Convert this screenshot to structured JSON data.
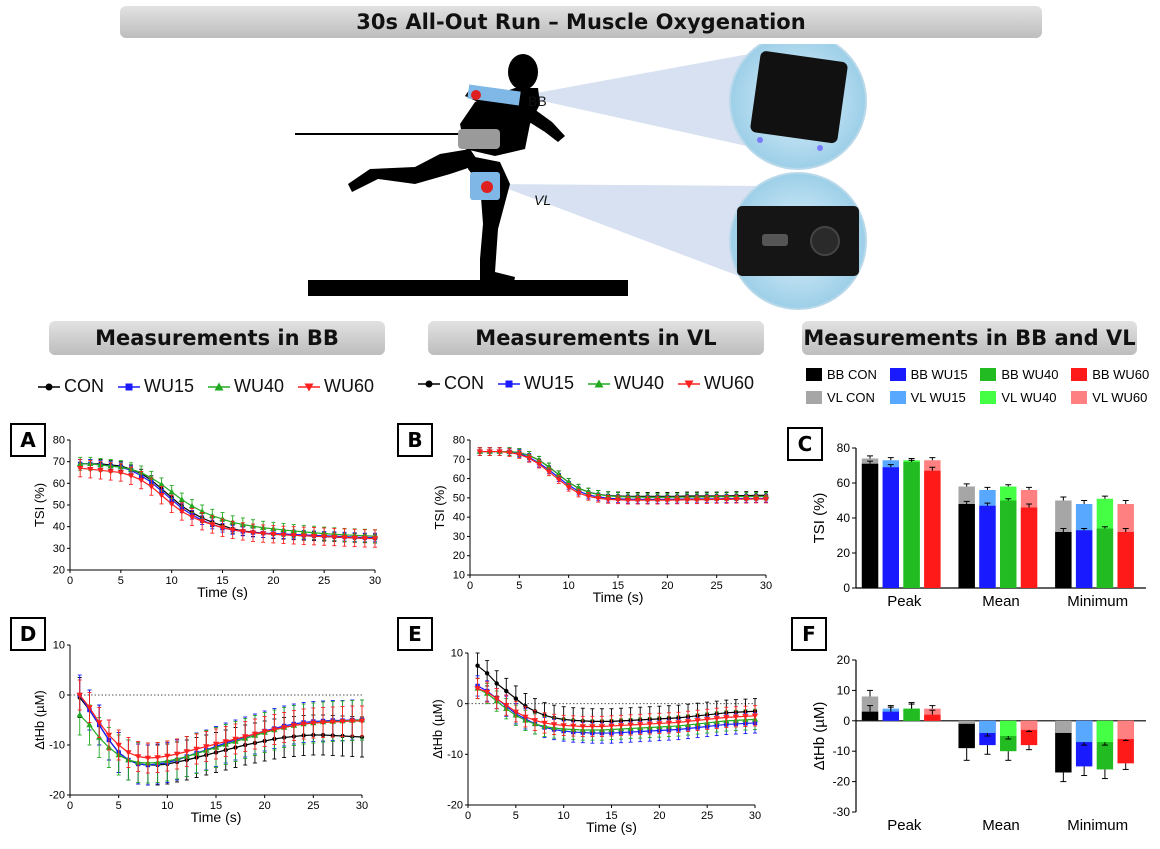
{
  "header": {
    "title": "30s All-Out Run – Muscle Oxygenation"
  },
  "illustration": {
    "bb_label": "BB",
    "vl_label": "VL"
  },
  "sections": {
    "bb": "Measurements in BB",
    "vl": "Measurements in VL",
    "both": "Measurements in BB and VL"
  },
  "panel_labels": {
    "A": "A",
    "B": "B",
    "C": "C",
    "D": "D",
    "E": "E",
    "F": "F"
  },
  "line_legend": [
    {
      "name": "CON",
      "color": "#000000",
      "marker": "circle"
    },
    {
      "name": "WU15",
      "color": "#1a1aff",
      "marker": "square"
    },
    {
      "name": "WU40",
      "color": "#22aa22",
      "marker": "triangle-up"
    },
    {
      "name": "WU60",
      "color": "#ff2020",
      "marker": "triangle-down"
    }
  ],
  "bar_legend": [
    {
      "name": "BB CON",
      "color": "#000000"
    },
    {
      "name": "BB WU15",
      "color": "#1a1aff"
    },
    {
      "name": "BB WU40",
      "color": "#22bb22"
    },
    {
      "name": "BB WU60",
      "color": "#ff1a1a"
    },
    {
      "name": "VL CON",
      "color": "#a6a6a6"
    },
    {
      "name": "VL WU15",
      "color": "#58a8ff"
    },
    {
      "name": "VL WU40",
      "color": "#44ff44"
    },
    {
      "name": "VL WU60",
      "color": "#ff8080"
    }
  ],
  "chart_data": [
    {
      "id": "A",
      "type": "line",
      "xlabel": "Time (s)",
      "ylabel": "TSI (%)",
      "xlim": [
        0,
        30
      ],
      "ylim": [
        20,
        80
      ],
      "xticks": [
        0,
        5,
        10,
        15,
        20,
        25,
        30
      ],
      "yticks": [
        20,
        30,
        40,
        50,
        60,
        70,
        80
      ],
      "x": [
        1,
        2,
        3,
        4,
        5,
        6,
        7,
        8,
        9,
        10,
        11,
        12,
        13,
        14,
        15,
        16,
        17,
        18,
        19,
        20,
        21,
        22,
        23,
        24,
        25,
        26,
        27,
        28,
        29,
        30
      ],
      "series": [
        {
          "name": "CON",
          "values": [
            69,
            69,
            69,
            68.5,
            68,
            66.5,
            64.5,
            61.5,
            57.5,
            53.5,
            49.5,
            46.5,
            44,
            42,
            40.5,
            39,
            38,
            37.5,
            37,
            36.5,
            36.3,
            36,
            35.8,
            35.6,
            35.4,
            35.2,
            35,
            34.8,
            34.6,
            34.5
          ],
          "err": 2
        },
        {
          "name": "WU15",
          "values": [
            69,
            69,
            68.5,
            68,
            67.5,
            66,
            63.5,
            60.5,
            56.5,
            52.5,
            48.5,
            45.5,
            43,
            41,
            39.5,
            38.5,
            37.8,
            37.3,
            37,
            36.8,
            36.6,
            36.4,
            36.2,
            36,
            35.8,
            35.6,
            35.4,
            35.2,
            35,
            35
          ],
          "err": 2
        },
        {
          "name": "WU40",
          "values": [
            69,
            69,
            68.5,
            68,
            67.5,
            66.5,
            65,
            62.5,
            59.5,
            56,
            52.5,
            49.5,
            47,
            45,
            43.5,
            42,
            41,
            40.2,
            39.5,
            39,
            38.5,
            38,
            37.6,
            37.2,
            36.8,
            36.5,
            36.2,
            36,
            35.8,
            35.6
          ],
          "err": 3
        },
        {
          "name": "WU60",
          "values": [
            67,
            66.5,
            66,
            65.5,
            65,
            63.5,
            61.5,
            58.5,
            54.5,
            50.5,
            47,
            44.5,
            42.5,
            41,
            39.5,
            38.5,
            37.8,
            37.2,
            36.8,
            36.5,
            36.2,
            36,
            35.8,
            35.6,
            35.4,
            35.2,
            35,
            34.8,
            34.6,
            34.5
          ],
          "err": 4
        }
      ]
    },
    {
      "id": "B",
      "type": "line",
      "xlabel": "Time (s)",
      "ylabel": "TSI (%)",
      "xlim": [
        0,
        30
      ],
      "ylim": [
        10,
        80
      ],
      "xticks": [
        0,
        5,
        10,
        15,
        20,
        25,
        30
      ],
      "yticks": [
        10,
        20,
        30,
        40,
        50,
        60,
        70,
        80
      ],
      "x": [
        1,
        2,
        3,
        4,
        5,
        6,
        7,
        8,
        9,
        10,
        11,
        12,
        13,
        14,
        15,
        16,
        17,
        18,
        19,
        20,
        21,
        22,
        23,
        24,
        25,
        26,
        27,
        28,
        29,
        30
      ],
      "series": [
        {
          "name": "CON",
          "values": [
            74,
            74,
            74,
            74,
            73.5,
            72,
            69.5,
            66,
            62,
            58,
            55,
            53,
            51.8,
            51.2,
            51,
            50.8,
            50.8,
            50.8,
            50.8,
            50.8,
            50.8,
            51,
            51,
            51,
            51,
            51,
            51.2,
            51.2,
            51.3,
            51.3
          ],
          "err": 2
        },
        {
          "name": "WU15",
          "values": [
            74,
            74,
            74,
            73.8,
            73,
            71,
            68,
            64.5,
            60.5,
            56.5,
            53.5,
            51.5,
            50.5,
            49.8,
            49.5,
            49.3,
            49.2,
            49.2,
            49.2,
            49.2,
            49.3,
            49.4,
            49.4,
            49.5,
            49.5,
            49.6,
            49.6,
            49.7,
            49.7,
            49.8
          ],
          "err": 2
        },
        {
          "name": "WU40",
          "values": [
            74,
            74,
            74,
            74,
            73.5,
            72,
            69.5,
            66,
            62,
            58,
            55,
            53,
            51.8,
            51,
            50.7,
            50.5,
            50.4,
            50.3,
            50.3,
            50.3,
            50.4,
            50.4,
            50.5,
            50.5,
            50.6,
            50.6,
            50.7,
            50.7,
            50.8,
            50.8
          ],
          "err": 2
        },
        {
          "name": "WU60",
          "values": [
            74,
            74,
            74,
            73.5,
            72.5,
            70.5,
            67.5,
            63.5,
            59.5,
            55.5,
            52.5,
            50.8,
            49.8,
            49.2,
            49,
            48.8,
            48.8,
            48.8,
            48.8,
            48.8,
            48.9,
            49,
            49,
            49.1,
            49.2,
            49.2,
            49.3,
            49.3,
            49.4,
            49.4
          ],
          "err": 2
        }
      ]
    },
    {
      "id": "C",
      "type": "bar",
      "ylabel": "TSI (%)",
      "ylim": [
        0,
        80
      ],
      "yticks": [
        0,
        20,
        40,
        60,
        80
      ],
      "categories": [
        "Peak",
        "Mean",
        "Minimum"
      ],
      "bb": [
        {
          "name": "BB CON",
          "values": [
            71,
            48,
            32
          ],
          "err": [
            1.5,
            1.5,
            2
          ]
        },
        {
          "name": "BB WU15",
          "values": [
            69,
            47,
            33
          ],
          "err": [
            1.5,
            1.5,
            1
          ]
        },
        {
          "name": "BB WU40",
          "values": [
            72,
            50,
            34
          ],
          "err": [
            1,
            1,
            1
          ]
        },
        {
          "name": "BB WU60",
          "values": [
            67,
            46,
            32
          ],
          "err": [
            2,
            2,
            2
          ]
        }
      ],
      "vl": [
        {
          "name": "VL CON",
          "values": [
            74,
            58,
            50
          ],
          "err": [
            1.5,
            1.5,
            2
          ]
        },
        {
          "name": "VL WU15",
          "values": [
            73,
            56,
            48
          ],
          "err": [
            1.5,
            1.5,
            2
          ]
        },
        {
          "name": "VL WU40",
          "values": [
            73,
            58,
            51
          ],
          "err": [
            1,
            1,
            1.5
          ]
        },
        {
          "name": "VL WU60",
          "values": [
            73,
            56,
            48
          ],
          "err": [
            1.5,
            1.5,
            2
          ]
        }
      ]
    },
    {
      "id": "D",
      "type": "line",
      "xlabel": "Time (s)",
      "ylabel": "ΔtHb (µM)",
      "xlim": [
        0,
        30
      ],
      "ylim": [
        -20,
        10
      ],
      "xticks": [
        0,
        5,
        10,
        15,
        20,
        25,
        30
      ],
      "yticks": [
        -20,
        -10,
        0,
        10
      ],
      "reference_line": 0,
      "x": [
        1,
        2,
        3,
        4,
        5,
        6,
        7,
        8,
        9,
        10,
        11,
        12,
        13,
        14,
        15,
        16,
        17,
        18,
        19,
        20,
        21,
        22,
        23,
        24,
        25,
        26,
        27,
        28,
        29,
        30
      ],
      "series": [
        {
          "name": "CON",
          "values": [
            -0.5,
            -3,
            -6,
            -9,
            -11.5,
            -13,
            -13.8,
            -14,
            -14,
            -13.8,
            -13.4,
            -13,
            -12.5,
            -12,
            -11.5,
            -11,
            -10.5,
            -10,
            -9.6,
            -9.2,
            -8.8,
            -8.5,
            -8.3,
            -8.1,
            -8,
            -8,
            -8.1,
            -8.2,
            -8.3,
            -8.4
          ],
          "err": 4
        },
        {
          "name": "WU15",
          "values": [
            0,
            -3,
            -6,
            -9,
            -11.5,
            -13,
            -13.8,
            -14,
            -13.8,
            -13.5,
            -13,
            -12.3,
            -11.6,
            -11,
            -10.3,
            -9.6,
            -9,
            -8.4,
            -7.8,
            -7.2,
            -6.7,
            -6.2,
            -5.8,
            -5.5,
            -5.3,
            -5.2,
            -5.1,
            -5.1,
            -5,
            -5
          ],
          "err": 4
        },
        {
          "name": "WU40",
          "values": [
            -4,
            -6,
            -8.5,
            -10.5,
            -12,
            -13,
            -13.5,
            -13.6,
            -13.5,
            -13.2,
            -12.8,
            -12.3,
            -11.7,
            -11.1,
            -10.5,
            -9.9,
            -9.3,
            -8.7,
            -8.1,
            -7.5,
            -7,
            -6.5,
            -6.1,
            -5.8,
            -5.6,
            -5.4,
            -5.3,
            -5.2,
            -5.1,
            -5
          ],
          "err": 4
        },
        {
          "name": "WU60",
          "values": [
            0,
            -2.5,
            -5.5,
            -8,
            -10,
            -11.5,
            -12.3,
            -12.6,
            -12.5,
            -12.2,
            -11.8,
            -11.3,
            -10.8,
            -10.3,
            -9.8,
            -9.3,
            -8.8,
            -8.3,
            -7.8,
            -7.3,
            -6.9,
            -6.5,
            -6.1,
            -5.8,
            -5.6,
            -5.5,
            -5.4,
            -5.3,
            -5.2,
            -5.2
          ],
          "err": 3
        }
      ]
    },
    {
      "id": "E",
      "type": "line",
      "xlabel": "Time (s)",
      "ylabel": "ΔtHb (µM)",
      "xlim": [
        0,
        30
      ],
      "ylim": [
        -20,
        10
      ],
      "xticks": [
        0,
        5,
        10,
        15,
        20,
        25,
        30
      ],
      "yticks": [
        -20,
        -10,
        0,
        10
      ],
      "reference_line": 0,
      "x": [
        1,
        2,
        3,
        4,
        5,
        6,
        7,
        8,
        9,
        10,
        11,
        12,
        13,
        14,
        15,
        16,
        17,
        18,
        19,
        20,
        21,
        22,
        23,
        24,
        25,
        26,
        27,
        28,
        29,
        30
      ],
      "series": [
        {
          "name": "CON",
          "values": [
            7.5,
            6,
            4,
            2.5,
            1,
            -0.5,
            -1.5,
            -2.3,
            -2.8,
            -3.1,
            -3.3,
            -3.4,
            -3.5,
            -3.5,
            -3.5,
            -3.4,
            -3.3,
            -3.2,
            -3.1,
            -3,
            -2.9,
            -2.8,
            -2.6,
            -2.4,
            -2.2,
            -2,
            -1.8,
            -1.7,
            -1.6,
            -1.5
          ],
          "err": 2.5
        },
        {
          "name": "WU15",
          "values": [
            3.5,
            2.5,
            1,
            -0.5,
            -2,
            -3,
            -4,
            -4.7,
            -5.1,
            -5.4,
            -5.6,
            -5.7,
            -5.8,
            -5.8,
            -5.8,
            -5.7,
            -5.6,
            -5.5,
            -5.4,
            -5.3,
            -5.2,
            -5.1,
            -4.9,
            -4.7,
            -4.5,
            -4.3,
            -4.1,
            -4,
            -3.9,
            -3.8
          ],
          "err": 2
        },
        {
          "name": "WU40",
          "values": [
            3,
            2,
            0.5,
            -1,
            -2.3,
            -3.3,
            -4,
            -4.5,
            -4.8,
            -5,
            -5.1,
            -5.2,
            -5.2,
            -5.2,
            -5.1,
            -5,
            -4.9,
            -4.8,
            -4.7,
            -4.6,
            -4.5,
            -4.4,
            -4.2,
            -4,
            -3.8,
            -3.6,
            -3.4,
            -3.3,
            -3.2,
            -3.1
          ],
          "err": 2
        },
        {
          "name": "WU60",
          "values": [
            3,
            2.3,
            1,
            -0.3,
            -1.6,
            -2.6,
            -3.3,
            -3.8,
            -4.1,
            -4.3,
            -4.4,
            -4.5,
            -4.5,
            -4.5,
            -4.4,
            -4.3,
            -4.2,
            -4.1,
            -4,
            -3.9,
            -3.8,
            -3.7,
            -3.5,
            -3.3,
            -3.1,
            -2.9,
            -2.7,
            -2.6,
            -2.5,
            -2.4
          ],
          "err": 2
        }
      ]
    },
    {
      "id": "F",
      "type": "bar",
      "ylabel": "ΔtHb (µM)",
      "ylim": [
        -30,
        20
      ],
      "yticks": [
        -30,
        -20,
        -10,
        0,
        10,
        20
      ],
      "categories": [
        "Peak",
        "Mean",
        "Minimum"
      ],
      "bb": [
        {
          "name": "BB CON",
          "values": [
            3,
            -9,
            -17
          ],
          "err": [
            2,
            4,
            3
          ]
        },
        {
          "name": "BB WU15",
          "values": [
            3,
            -8,
            -15
          ],
          "err": [
            1.5,
            3,
            3
          ]
        },
        {
          "name": "BB WU40",
          "values": [
            4,
            -10,
            -16
          ],
          "err": [
            2,
            3,
            3
          ]
        },
        {
          "name": "BB WU60",
          "values": [
            2,
            -8,
            -14
          ],
          "err": [
            1.5,
            1.5,
            2
          ]
        }
      ],
      "vl": [
        {
          "name": "VL CON",
          "values": [
            8,
            -1,
            -4
          ],
          "err": [
            2,
            1,
            1
          ]
        },
        {
          "name": "VL WU15",
          "values": [
            4,
            -4,
            -7
          ],
          "err": [
            1,
            1,
            1
          ]
        },
        {
          "name": "VL WU40",
          "values": [
            4,
            -5,
            -7
          ],
          "err": [
            1.5,
            1,
            1
          ]
        },
        {
          "name": "VL WU60",
          "values": [
            4,
            -3,
            -6
          ],
          "err": [
            1,
            0.5,
            0.5
          ]
        }
      ]
    }
  ]
}
